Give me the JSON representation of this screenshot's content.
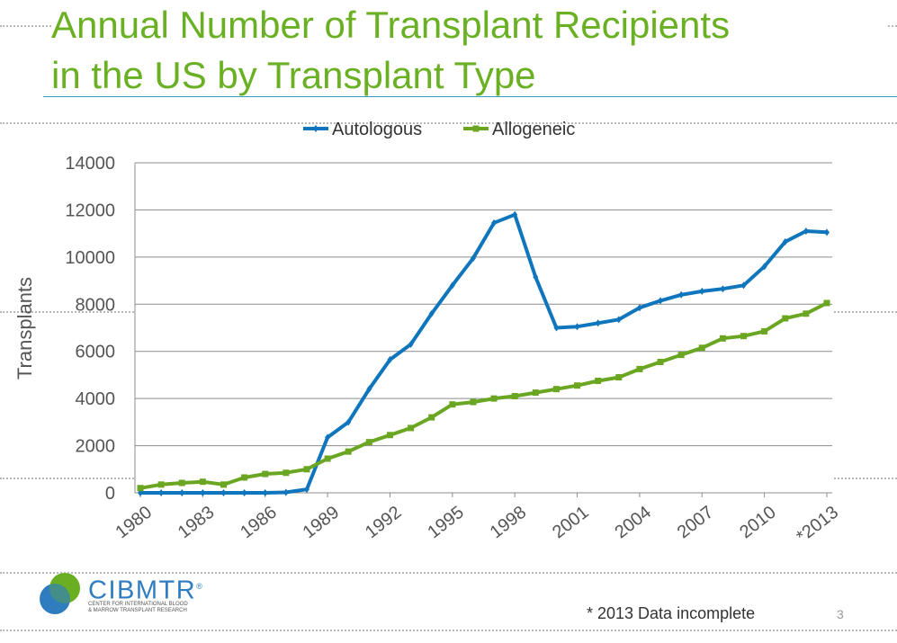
{
  "slide": {
    "title_line1": "Annual Number of Transplant Recipients",
    "title_line2": "in the US by Transplant Type",
    "footnote": "* 2013 Data incomplete",
    "page_number": "3",
    "logo": {
      "name": "CIBMTR",
      "registered": "®",
      "tagline_line1": "Center for International Blood",
      "tagline_line2": "& Marrow Transplant Research"
    }
  },
  "chart_data": {
    "type": "line",
    "title": "",
    "xlabel": "",
    "ylabel": "Transplants",
    "ylim": [
      0,
      14000
    ],
    "yticks": [
      0,
      2000,
      4000,
      6000,
      8000,
      10000,
      12000,
      14000
    ],
    "x": [
      1980,
      1981,
      1982,
      1983,
      1984,
      1985,
      1986,
      1987,
      1988,
      1989,
      1990,
      1991,
      1992,
      1993,
      1994,
      1995,
      1996,
      1997,
      1998,
      1999,
      2000,
      2001,
      2002,
      2003,
      2004,
      2005,
      2006,
      2007,
      2008,
      2009,
      2010,
      2011,
      2012,
      2013
    ],
    "xtick_labels": [
      "1980",
      "1983",
      "1986",
      "1989",
      "1992",
      "1995",
      "1998",
      "2001",
      "2004",
      "2007",
      "2010",
      "*2013"
    ],
    "xtick_values": [
      1980,
      1983,
      1986,
      1989,
      1992,
      1995,
      1998,
      2001,
      2004,
      2007,
      2010,
      2013
    ],
    "grid": true,
    "legend_position": "top-center",
    "series": [
      {
        "name": "Autologous",
        "color": "#0f75bc",
        "marker": "diamond",
        "values": [
          0,
          0,
          0,
          0,
          0,
          0,
          0,
          20,
          150,
          2350,
          3000,
          4400,
          5650,
          6300,
          7600,
          8800,
          9950,
          11450,
          11800,
          9150,
          7000,
          7050,
          7200,
          7350,
          7850,
          8150,
          8400,
          8550,
          8650,
          8800,
          9600,
          10650,
          11100,
          11050
        ]
      },
      {
        "name": "Allogeneic",
        "color": "#6aa621",
        "marker": "square",
        "values": [
          200,
          350,
          420,
          470,
          350,
          650,
          800,
          850,
          1000,
          1450,
          1750,
          2150,
          2450,
          2750,
          3200,
          3750,
          3850,
          4000,
          4100,
          4250,
          4400,
          4550,
          4750,
          4900,
          5250,
          5550,
          5850,
          6150,
          6550,
          6650,
          6850,
          7400,
          7600,
          8050
        ]
      }
    ]
  }
}
